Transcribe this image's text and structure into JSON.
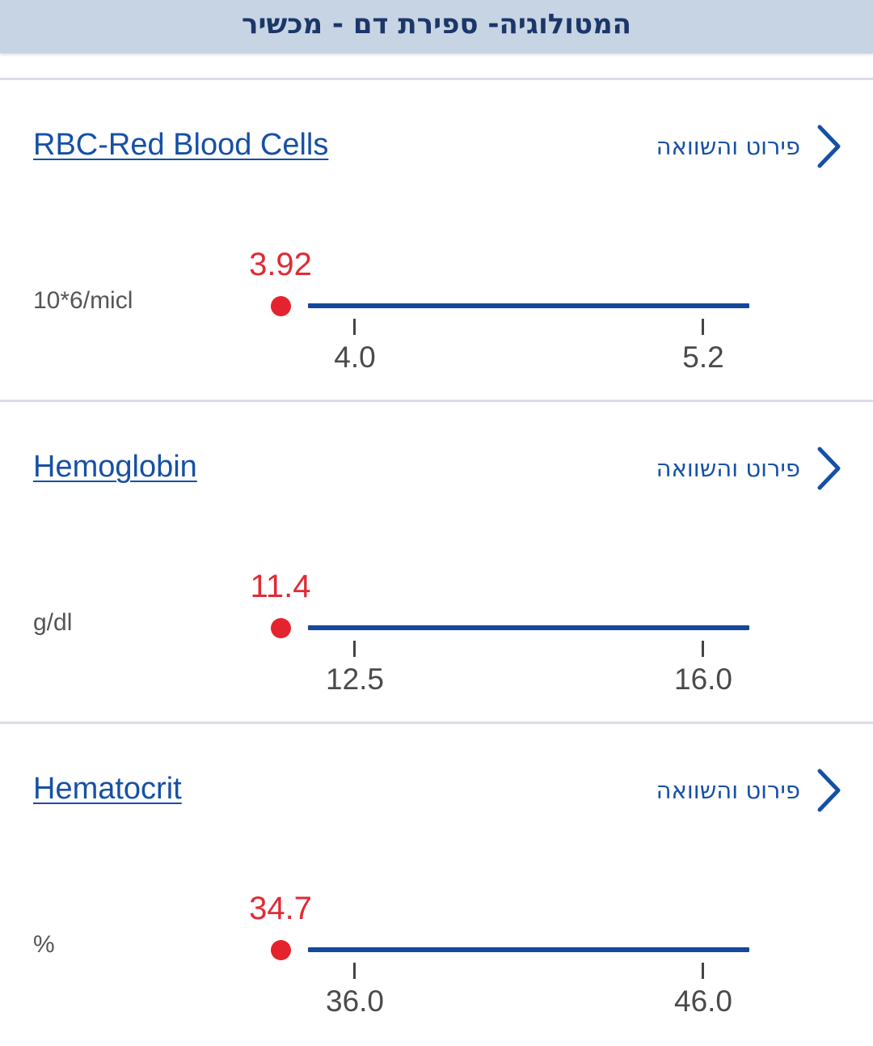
{
  "header": {
    "title": "המטולוגיה- ספירת דם - מכשיר"
  },
  "details_label": "פירוט והשוואה",
  "colors": {
    "header_bg": "#c7d4e3",
    "header_text": "#1b3668",
    "link_blue": "#1650a6",
    "range_line": "#16489b",
    "out_of_range_red": "#e5232e",
    "divider": "#d9dee6"
  },
  "tests": [
    {
      "name": "RBC-Red Blood Cells",
      "unit": "10*6/micl",
      "value": "3.92",
      "range_low": "4.0",
      "range_high": "5.2",
      "status": "below-range",
      "details_icon": "chevron-right-icon"
    },
    {
      "name": "Hemoglobin",
      "unit": "g/dl",
      "value": "11.4",
      "range_low": "12.5",
      "range_high": "16.0",
      "status": "below-range",
      "details_icon": "chevron-right-icon"
    },
    {
      "name": "Hematocrit",
      "unit": "%",
      "value": "34.7",
      "range_low": "36.0",
      "range_high": "46.0",
      "status": "below-range",
      "details_icon": "chevron-right-icon"
    }
  ]
}
